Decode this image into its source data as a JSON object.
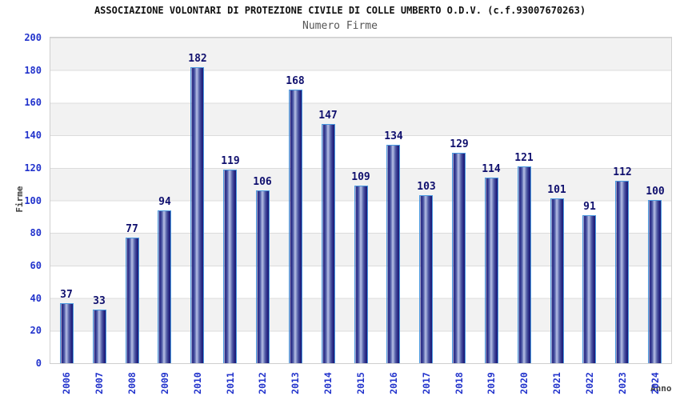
{
  "header": {
    "title": "ASSOCIAZIONE VOLONTARI DI PROTEZIONE CIVILE DI COLLE UMBERTO O.D.V. (c.f.93007670263)",
    "subtitle": "Numero Firme"
  },
  "chart_data": {
    "type": "bar",
    "title": "ASSOCIAZIONE VOLONTARI DI PROTEZIONE CIVILE DI COLLE UMBERTO O.D.V. (c.f.93007670263)",
    "subtitle": "Numero Firme",
    "xlabel": "Anno",
    "ylabel": "Firme",
    "categories": [
      "2006",
      "2007",
      "2008",
      "2009",
      "2010",
      "2011",
      "2012",
      "2013",
      "2014",
      "2015",
      "2016",
      "2017",
      "2018",
      "2019",
      "2020",
      "2021",
      "2022",
      "2023",
      "2024"
    ],
    "values": [
      37,
      33,
      77,
      94,
      182,
      119,
      106,
      168,
      147,
      109,
      134,
      103,
      129,
      114,
      121,
      101,
      91,
      112,
      100
    ],
    "ylim": [
      0,
      200
    ],
    "ytick_interval": 20,
    "yticks": [
      0,
      20,
      40,
      60,
      80,
      100,
      120,
      140,
      160,
      180,
      200
    ],
    "grid": "horizontal gridlines with alternating gray/white bands",
    "legend": "none",
    "bar_labels_shown": true,
    "colors": {
      "bar_edge": "#4b9ae0",
      "bar_dark": "#191975",
      "bar_light": "#b9c1e5",
      "value_label": "#10106e",
      "axis_tick_label": "#2233cc",
      "axis_title": "#404040",
      "band_gray": "#f2f2f2",
      "plot_border": "#cfcfcf",
      "title_color": "#111111",
      "subtitle_color": "#555555"
    }
  }
}
